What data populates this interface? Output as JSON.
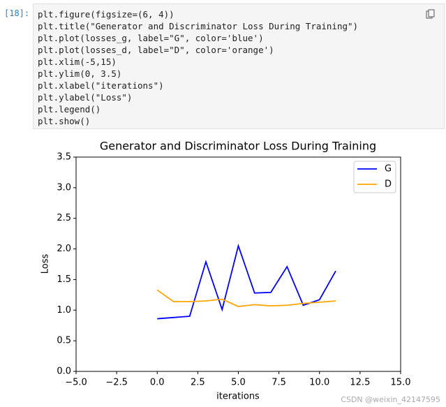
{
  "cell": {
    "prompt": "[18]:",
    "code": [
      "plt.figure(figsize=(6, 4))",
      "plt.title(\"Generator and Discriminator Loss During Training\")",
      "plt.plot(losses_g, label=\"G\", color='blue')",
      "plt.plot(losses_d, label=\"D\", color='orange')",
      "plt.xlim(-5,15)",
      "plt.ylim(0, 3.5)",
      "plt.xlabel(\"iterations\")",
      "plt.ylabel(\"Loss\")",
      "plt.legend()",
      "plt.show()"
    ]
  },
  "chart_data": {
    "type": "line",
    "title": "Generator and Discriminator Loss During Training",
    "x_label": "iterations",
    "y_label": "Loss",
    "x": [
      0,
      1,
      2,
      3,
      4,
      5,
      6,
      7,
      8,
      9,
      10,
      11
    ],
    "series": [
      {
        "name": "G",
        "color": "#0000ff",
        "values": [
          0.86,
          0.88,
          0.9,
          1.79,
          1.01,
          2.05,
          1.28,
          1.29,
          1.71,
          1.08,
          1.17,
          1.64
        ]
      },
      {
        "name": "D",
        "color": "#ffa500",
        "values": [
          1.33,
          1.14,
          1.14,
          1.15,
          1.18,
          1.06,
          1.09,
          1.07,
          1.08,
          1.11,
          1.13,
          1.15
        ]
      }
    ],
    "xlim": [
      -5,
      15
    ],
    "xticks": [
      {
        "value": -5,
        "label": "−5.0"
      },
      {
        "value": -2.5,
        "label": "−2.5"
      },
      {
        "value": 0,
        "label": "0.0"
      },
      2.5,
      {
        "value": 5,
        "label": "5.0"
      },
      7.5,
      {
        "value": 10,
        "label": "10.0"
      },
      12.5,
      {
        "value": 15,
        "label": "15.0"
      }
    ],
    "ylim": [
      0,
      3.5
    ],
    "yticks": [
      {
        "value": 0,
        "label": "0.0"
      },
      0.5,
      {
        "value": 1,
        "label": "1.0"
      },
      1.5,
      {
        "value": 2,
        "label": "2.0"
      },
      2.5,
      {
        "value": 3,
        "label": "3.0"
      },
      3.5
    ],
    "legend": "upper right"
  },
  "watermark": "CSDN @weixin_42147595"
}
